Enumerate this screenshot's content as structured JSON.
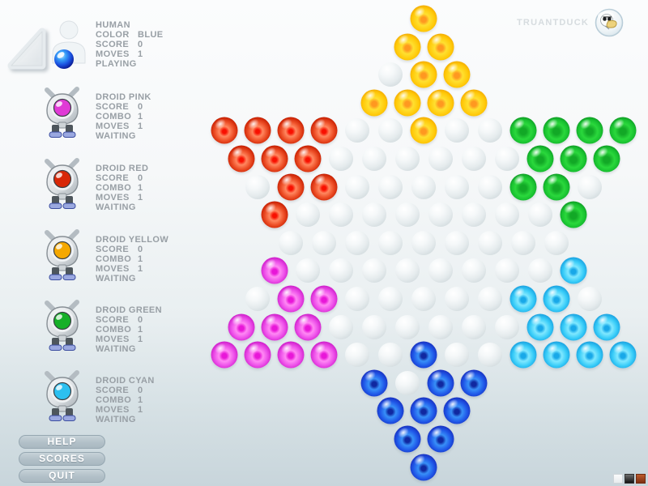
{
  "brand": {
    "name": "TRUANTDUCK"
  },
  "sidebar": {
    "panels": [
      {
        "name": "HUMAN",
        "icon": "human",
        "color": "#1e4fd8",
        "stats": [
          {
            "label": "COLOR",
            "value": "BLUE"
          },
          {
            "label": "SCORE",
            "value": "0"
          },
          {
            "label": "MOVES",
            "value": "1"
          }
        ],
        "status": "PLAYING"
      },
      {
        "name": "DROID PINK",
        "icon": "droid",
        "color": "#e03ad6",
        "stats": [
          {
            "label": "SCORE",
            "value": "0"
          },
          {
            "label": "COMBO",
            "value": "1"
          },
          {
            "label": "MOVES",
            "value": "1"
          }
        ],
        "status": "WAITING"
      },
      {
        "name": "DROID RED",
        "icon": "droid",
        "color": "#d82808",
        "stats": [
          {
            "label": "SCORE",
            "value": "0"
          },
          {
            "label": "COMBO",
            "value": "1"
          },
          {
            "label": "MOVES",
            "value": "1"
          }
        ],
        "status": "WAITING"
      },
      {
        "name": "DROID YELLOW",
        "icon": "droid",
        "color": "#f5a800",
        "stats": [
          {
            "label": "SCORE",
            "value": "0"
          },
          {
            "label": "COMBO",
            "value": "1"
          },
          {
            "label": "MOVES",
            "value": "1"
          }
        ],
        "status": "WAITING"
      },
      {
        "name": "DROID GREEN",
        "icon": "droid",
        "color": "#16b028",
        "stats": [
          {
            "label": "SCORE",
            "value": "0"
          },
          {
            "label": "COMBO",
            "value": "1"
          },
          {
            "label": "MOVES",
            "value": "1"
          }
        ],
        "status": "WAITING"
      },
      {
        "name": "DROID CYAN",
        "icon": "droid",
        "color": "#2cc0f0",
        "stats": [
          {
            "label": "SCORE",
            "value": "0"
          },
          {
            "label": "COMBO",
            "value": "1"
          },
          {
            "label": "MOVES",
            "value": "1"
          }
        ],
        "status": "WAITING"
      }
    ],
    "buttons": [
      "HELP",
      "SCORES",
      "QUIT"
    ]
  },
  "board": {
    "legend": {
      "Y": "yellow",
      "R": "red",
      "G": "green",
      "M": "magenta",
      "C": "cyan",
      "B": "blue",
      ".": "empty"
    },
    "rows": [
      "Y",
      "YY",
      ".YY",
      "YYYY",
      "RRRR..Y..GGGG",
      "RRR......GGG",
      ".RR.....GG.",
      "R........G",
      ".........",
      "M........C",
      ".MM.....CC.",
      "MMM......CCC",
      "MMMM..B..CCCC",
      "B.BB",
      "BBB",
      "BB",
      "B"
    ]
  },
  "corner_swatches": [
    "white",
    "black",
    "orange"
  ],
  "colors": {
    "yellow": "#ffc808",
    "red": "#d82808",
    "green": "#16b028",
    "magenta": "#e03ad6",
    "cyan": "#2cc0f0",
    "blue": "#1e4fd8",
    "button_fill": "#b2c0c8",
    "text_gray": "#989fa5",
    "brand_gray": "#d6dcdf"
  }
}
